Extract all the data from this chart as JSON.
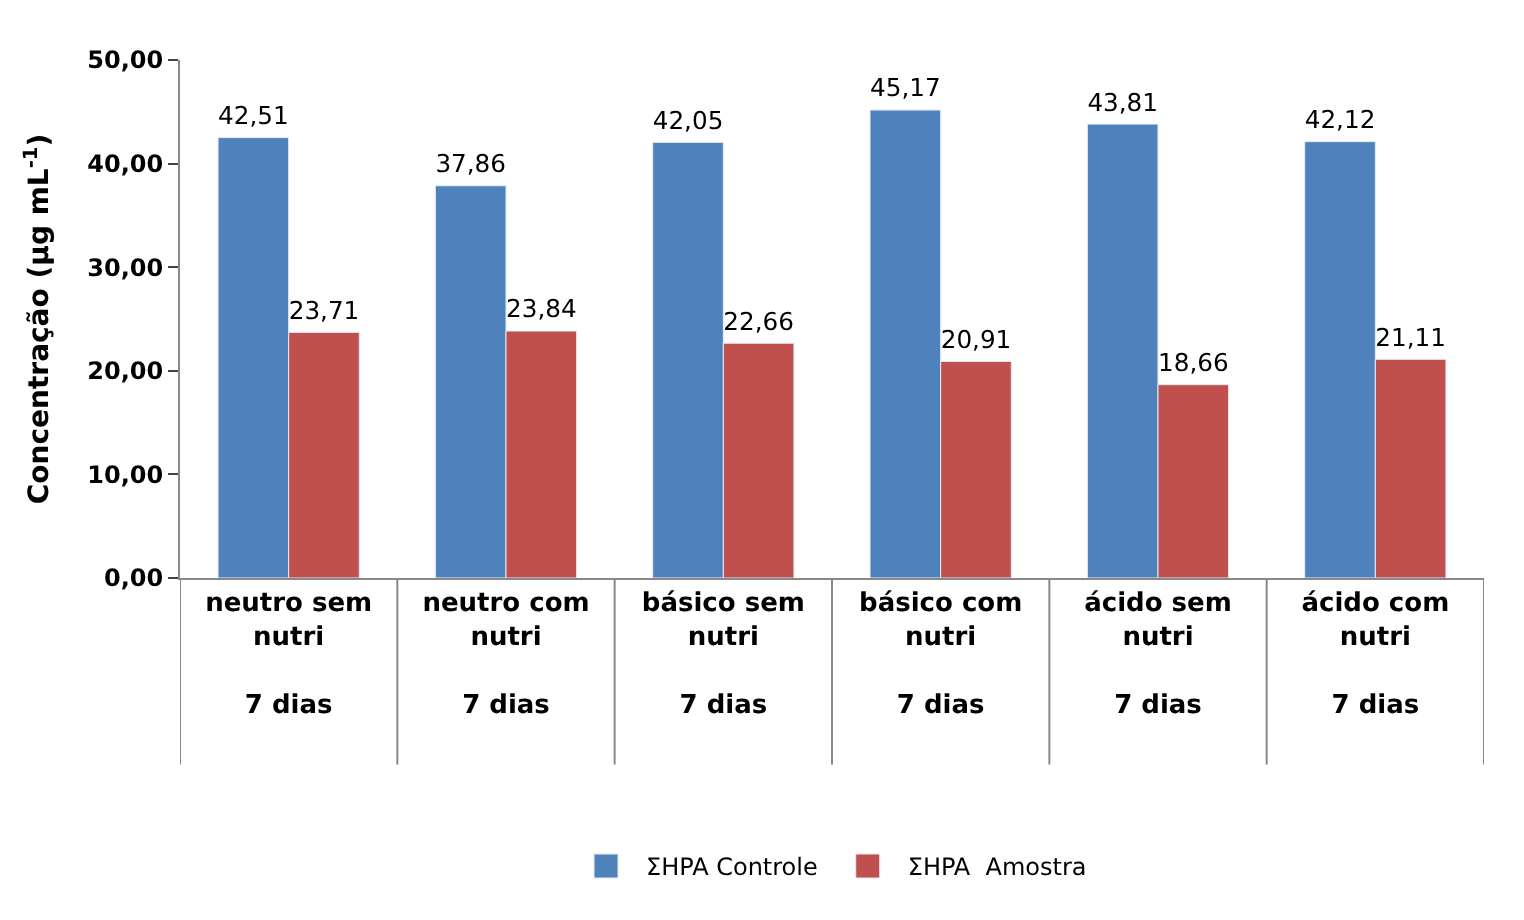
{
  "chart_data": {
    "type": "bar",
    "ylabel": "Concentração (µg mL$^{-1}$)",
    "categories": [
      "neutro sem nutri\n7 dias",
      "neutro com nutri\n7 dias",
      "básico sem nutri\n7 dias",
      "básico com nutri\n7 dias",
      "ácido sem nutri\n7 dias",
      "ácido com nutri\n7 dias"
    ],
    "series": [
      {
        "name": "ΣHPA Controle",
        "color": "#4f81bd",
        "values": [
          42.51,
          37.86,
          42.05,
          45.17,
          43.81,
          42.12
        ],
        "value_labels": [
          "42,51",
          "37,86",
          "42,05",
          "45,17",
          "43,81",
          "42,12"
        ]
      },
      {
        "name": "ΣHPA  Amostra",
        "color": "#c0504d",
        "values": [
          23.71,
          23.84,
          22.66,
          20.91,
          18.66,
          21.11
        ],
        "value_labels": [
          "23,71",
          "23,84",
          "22,66",
          "20,91",
          "18,66",
          "21,11"
        ]
      }
    ],
    "ylim": [
      0,
      50
    ],
    "yticks": [
      {
        "value": 0,
        "label": "0,00"
      },
      {
        "value": 10,
        "label": "10,00"
      },
      {
        "value": 20,
        "label": "20,00"
      },
      {
        "value": 30,
        "label": "30,00"
      },
      {
        "value": 40,
        "label": "40,00"
      },
      {
        "value": 50,
        "label": "50,00"
      }
    ],
    "legend": "bottom"
  }
}
